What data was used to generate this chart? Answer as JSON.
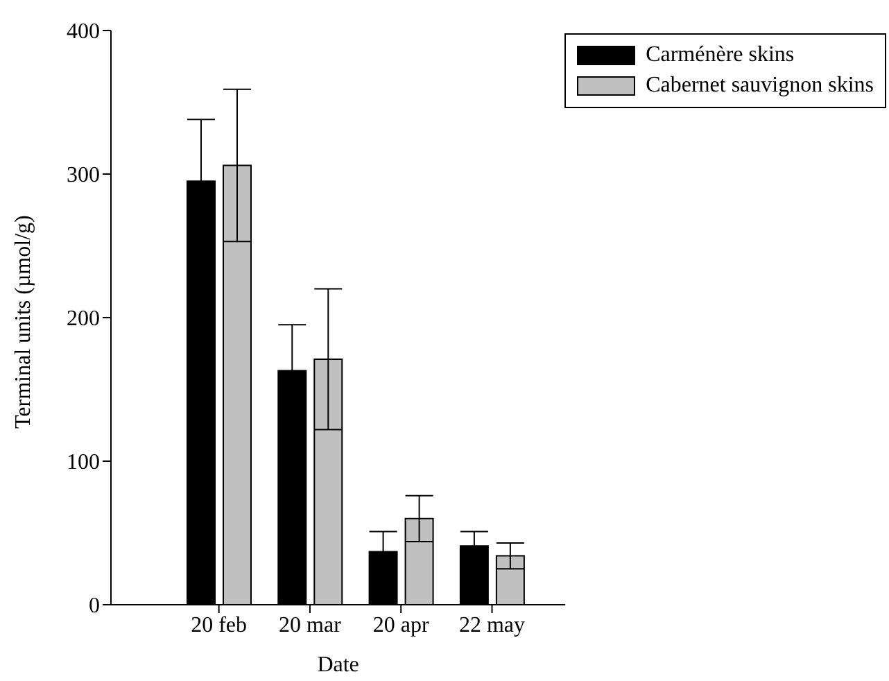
{
  "chart_data": {
    "type": "bar",
    "categories": [
      "20 feb",
      "20 mar",
      "20 apr",
      "22 may"
    ],
    "xlabel": "Date",
    "ylabel": "Terminal units (µmol/g)",
    "series": [
      {
        "name": "Carménère skins",
        "color": "#000000",
        "values": [
          295,
          163,
          37,
          41
        ],
        "errors": [
          43,
          32,
          14,
          10
        ]
      },
      {
        "name": "Cabernet sauvignon skins",
        "color": "#c0c0c0",
        "values": [
          306,
          171,
          60,
          34
        ],
        "errors": [
          53,
          49,
          16,
          9
        ]
      }
    ],
    "ylim": [
      0,
      400
    ],
    "yticks": [
      0,
      100,
      200,
      300,
      400
    ],
    "grid": false,
    "legend": "top right"
  }
}
